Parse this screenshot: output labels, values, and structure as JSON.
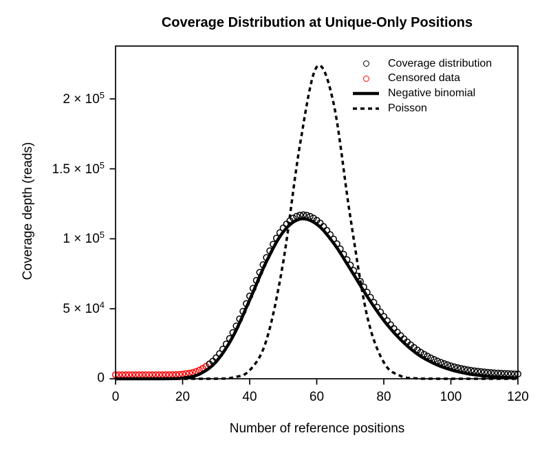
{
  "chart_data": {
    "type": "line+scatter",
    "title": "Coverage Distribution at Unique-Only Positions",
    "xlabel": "Number of reference positions",
    "ylabel": "Coverage depth (reads)",
    "xlim": [
      0,
      120
    ],
    "ylim": [
      0,
      237000
    ],
    "grid": false,
    "x_ticks": [
      0,
      20,
      40,
      60,
      80,
      100,
      120
    ],
    "y_ticks": [
      {
        "value": 0,
        "base": "0",
        "exp": ""
      },
      {
        "value": 50000,
        "base": "5 × 10",
        "exp": "4"
      },
      {
        "value": 100000,
        "base": "1 × 10",
        "exp": "5"
      },
      {
        "value": 150000,
        "base": "1.5 × 10",
        "exp": "5"
      },
      {
        "value": 200000,
        "base": "2 × 10",
        "exp": "5"
      }
    ],
    "legend": {
      "position": "top-right",
      "border": false,
      "items": [
        {
          "label": "Coverage distribution",
          "marker": "open-circle",
          "color": "#000000"
        },
        {
          "label": "Censored data",
          "marker": "open-circle",
          "color": "#ff0000"
        },
        {
          "label": "Negative binomial",
          "marker": "solid-line",
          "color": "#000000"
        },
        {
          "label": "Poisson",
          "marker": "dashed-line",
          "color": "#000000"
        }
      ]
    },
    "series": [
      {
        "name": "Negative binomial",
        "type": "line",
        "style": "solid",
        "color": "#000000",
        "width": 4.5,
        "x": [
          0,
          5,
          10,
          15,
          20,
          25,
          30,
          35,
          40,
          45,
          50,
          55,
          60,
          65,
          70,
          75,
          80,
          85,
          90,
          95,
          100,
          105,
          110,
          115,
          120
        ],
        "y": [
          0,
          0,
          0,
          30,
          510,
          3300,
          12200,
          30200,
          56300,
          83800,
          104900,
          114100,
          110400,
          97000,
          78400,
          59000,
          41700,
          28000,
          17700,
          10900,
          6400,
          3600,
          2000,
          1100,
          590
        ]
      },
      {
        "name": "Poisson",
        "type": "line",
        "style": "dashed",
        "color": "#000000",
        "width": 3.5,
        "x": [
          0,
          5,
          10,
          15,
          20,
          25,
          30,
          35,
          40,
          45,
          50,
          55,
          60,
          65,
          70,
          75,
          80,
          85,
          90,
          95,
          100,
          105,
          110,
          115,
          120
        ],
        "y": [
          0,
          0,
          0,
          0,
          0,
          0,
          30,
          900,
          6000,
          27600,
          83300,
          167300,
          222900,
          197100,
          115700,
          45100,
          11700,
          2000,
          230,
          20,
          0,
          0,
          0,
          0,
          0
        ]
      },
      {
        "name": "Coverage distribution",
        "type": "scatter",
        "marker": "open-circle",
        "color": "#000000",
        "x_start": 28,
        "x_end": 120,
        "x_step": 1,
        "baseline_offset": 2800,
        "follows": "Negative binomial"
      },
      {
        "name": "Censored data",
        "type": "scatter",
        "marker": "open-circle",
        "color": "#ff0000",
        "x_start": 0,
        "x_end": 28,
        "x_step": 1,
        "baseline_offset": 2800,
        "follows": "Negative binomial"
      }
    ]
  }
}
